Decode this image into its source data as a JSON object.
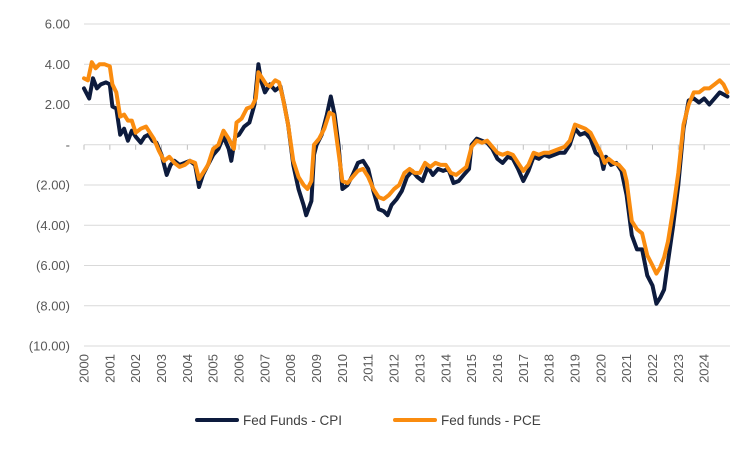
{
  "chart_data": {
    "type": "line",
    "title": "",
    "xlabel": "",
    "ylabel": "",
    "ylim": [
      -10,
      6
    ],
    "yticks": [
      6,
      4,
      2,
      0,
      -2,
      -4,
      -6,
      -8,
      -10
    ],
    "ytick_labels": [
      "6.00",
      "4.00",
      "2.00",
      "-",
      "(2.00)",
      "(4.00)",
      "(6.00)",
      "(8.00)",
      "(10.00)"
    ],
    "xlim": [
      2000,
      2025
    ],
    "xticks": [
      "2000",
      "2001",
      "2002",
      "2003",
      "2004",
      "2005",
      "2006",
      "2007",
      "2008",
      "2009",
      "2010",
      "2011",
      "2012",
      "2013",
      "2014",
      "2015",
      "2016",
      "2017",
      "2018",
      "2019",
      "2020",
      "2021",
      "2022",
      "2023",
      "2024"
    ],
    "grid": "horizontal",
    "legend_position": "bottom",
    "series": [
      {
        "name": "Fed Funds - CPI",
        "color": "#0d1b3d",
        "points": [
          [
            2000.0,
            2.8
          ],
          [
            2000.2,
            2.3
          ],
          [
            2000.35,
            3.3
          ],
          [
            2000.5,
            2.8
          ],
          [
            2000.65,
            3.0
          ],
          [
            2000.85,
            3.1
          ],
          [
            2001.0,
            3.0
          ],
          [
            2001.1,
            1.9
          ],
          [
            2001.25,
            1.8
          ],
          [
            2001.4,
            0.5
          ],
          [
            2001.55,
            0.8
          ],
          [
            2001.7,
            0.2
          ],
          [
            2001.85,
            0.7
          ],
          [
            2002.0,
            0.4
          ],
          [
            2002.2,
            0.1
          ],
          [
            2002.35,
            0.4
          ],
          [
            2002.5,
            0.5
          ],
          [
            2002.65,
            0.2
          ],
          [
            2002.8,
            0.1
          ],
          [
            2003.0,
            -0.5
          ],
          [
            2003.2,
            -1.5
          ],
          [
            2003.35,
            -1.0
          ],
          [
            2003.5,
            -0.8
          ],
          [
            2003.7,
            -1.0
          ],
          [
            2003.9,
            -0.9
          ],
          [
            2004.1,
            -0.8
          ],
          [
            2004.3,
            -1.0
          ],
          [
            2004.45,
            -2.1
          ],
          [
            2004.6,
            -1.5
          ],
          [
            2004.8,
            -1.0
          ],
          [
            2005.0,
            -0.5
          ],
          [
            2005.2,
            -0.2
          ],
          [
            2005.4,
            0.4
          ],
          [
            2005.6,
            -0.2
          ],
          [
            2005.7,
            -0.8
          ],
          [
            2005.85,
            0.4
          ],
          [
            2006.0,
            0.5
          ],
          [
            2006.2,
            0.9
          ],
          [
            2006.4,
            1.1
          ],
          [
            2006.6,
            2.0
          ],
          [
            2006.75,
            4.0
          ],
          [
            2006.85,
            3.2
          ],
          [
            2007.0,
            2.6
          ],
          [
            2007.2,
            3.0
          ],
          [
            2007.4,
            2.7
          ],
          [
            2007.6,
            2.9
          ],
          [
            2007.75,
            2.0
          ],
          [
            2007.9,
            1.0
          ],
          [
            2008.1,
            -1.0
          ],
          [
            2008.3,
            -2.2
          ],
          [
            2008.5,
            -3.0
          ],
          [
            2008.6,
            -3.5
          ],
          [
            2008.8,
            -2.8
          ],
          [
            2008.9,
            -0.5
          ],
          [
            2009.0,
            0.0
          ],
          [
            2009.2,
            0.5
          ],
          [
            2009.4,
            1.5
          ],
          [
            2009.55,
            2.4
          ],
          [
            2009.7,
            1.5
          ],
          [
            2009.85,
            0.0
          ],
          [
            2010.0,
            -2.2
          ],
          [
            2010.2,
            -2.0
          ],
          [
            2010.4,
            -1.5
          ],
          [
            2010.6,
            -0.9
          ],
          [
            2010.8,
            -0.8
          ],
          [
            2011.0,
            -1.2
          ],
          [
            2011.2,
            -2.3
          ],
          [
            2011.4,
            -3.2
          ],
          [
            2011.6,
            -3.3
          ],
          [
            2011.75,
            -3.5
          ],
          [
            2011.9,
            -3.0
          ],
          [
            2012.1,
            -2.7
          ],
          [
            2012.3,
            -2.3
          ],
          [
            2012.5,
            -1.6
          ],
          [
            2012.7,
            -1.3
          ],
          [
            2012.9,
            -1.6
          ],
          [
            2013.1,
            -1.8
          ],
          [
            2013.3,
            -1.1
          ],
          [
            2013.5,
            -1.5
          ],
          [
            2013.7,
            -1.2
          ],
          [
            2013.9,
            -1.3
          ],
          [
            2014.1,
            -1.2
          ],
          [
            2014.3,
            -1.9
          ],
          [
            2014.5,
            -1.8
          ],
          [
            2014.7,
            -1.5
          ],
          [
            2014.9,
            -1.2
          ],
          [
            2015.0,
            0.0
          ],
          [
            2015.2,
            0.3
          ],
          [
            2015.4,
            0.2
          ],
          [
            2015.6,
            0.1
          ],
          [
            2015.8,
            -0.2
          ],
          [
            2016.0,
            -0.7
          ],
          [
            2016.2,
            -0.9
          ],
          [
            2016.4,
            -0.6
          ],
          [
            2016.6,
            -0.7
          ],
          [
            2016.8,
            -1.2
          ],
          [
            2017.0,
            -1.8
          ],
          [
            2017.2,
            -1.3
          ],
          [
            2017.4,
            -0.6
          ],
          [
            2017.6,
            -0.7
          ],
          [
            2017.8,
            -0.5
          ],
          [
            2018.0,
            -0.6
          ],
          [
            2018.2,
            -0.5
          ],
          [
            2018.4,
            -0.4
          ],
          [
            2018.6,
            -0.4
          ],
          [
            2018.8,
            0.0
          ],
          [
            2019.0,
            0.8
          ],
          [
            2019.2,
            0.5
          ],
          [
            2019.4,
            0.6
          ],
          [
            2019.6,
            0.3
          ],
          [
            2019.8,
            -0.4
          ],
          [
            2020.0,
            -0.6
          ],
          [
            2020.1,
            -1.2
          ],
          [
            2020.2,
            -0.6
          ],
          [
            2020.4,
            -1.0
          ],
          [
            2020.6,
            -0.9
          ],
          [
            2020.8,
            -1.3
          ],
          [
            2021.0,
            -2.5
          ],
          [
            2021.2,
            -4.5
          ],
          [
            2021.4,
            -5.2
          ],
          [
            2021.6,
            -5.2
          ],
          [
            2021.8,
            -6.5
          ],
          [
            2022.0,
            -7.0
          ],
          [
            2022.15,
            -7.9
          ],
          [
            2022.3,
            -7.6
          ],
          [
            2022.45,
            -7.2
          ],
          [
            2022.6,
            -5.8
          ],
          [
            2022.8,
            -4.0
          ],
          [
            2023.0,
            -2.0
          ],
          [
            2023.2,
            0.8
          ],
          [
            2023.4,
            2.2
          ],
          [
            2023.6,
            2.3
          ],
          [
            2023.8,
            2.1
          ],
          [
            2024.0,
            2.3
          ],
          [
            2024.2,
            2.0
          ],
          [
            2024.4,
            2.3
          ],
          [
            2024.6,
            2.6
          ],
          [
            2024.75,
            2.5
          ],
          [
            2024.9,
            2.4
          ]
        ]
      },
      {
        "name": "Fed funds - PCE",
        "color": "#fa8c0f",
        "points": [
          [
            2000.0,
            3.3
          ],
          [
            2000.15,
            3.2
          ],
          [
            2000.3,
            4.1
          ],
          [
            2000.45,
            3.8
          ],
          [
            2000.6,
            4.0
          ],
          [
            2000.8,
            4.0
          ],
          [
            2001.0,
            3.9
          ],
          [
            2001.1,
            3.0
          ],
          [
            2001.25,
            2.6
          ],
          [
            2001.4,
            1.4
          ],
          [
            2001.55,
            1.5
          ],
          [
            2001.7,
            1.2
          ],
          [
            2001.85,
            1.2
          ],
          [
            2002.0,
            0.6
          ],
          [
            2002.2,
            0.8
          ],
          [
            2002.4,
            0.9
          ],
          [
            2002.55,
            0.6
          ],
          [
            2002.7,
            0.3
          ],
          [
            2002.9,
            -0.3
          ],
          [
            2003.1,
            -0.8
          ],
          [
            2003.3,
            -0.6
          ],
          [
            2003.5,
            -0.9
          ],
          [
            2003.7,
            -1.1
          ],
          [
            2003.9,
            -1.0
          ],
          [
            2004.1,
            -0.8
          ],
          [
            2004.3,
            -0.9
          ],
          [
            2004.45,
            -1.7
          ],
          [
            2004.6,
            -1.4
          ],
          [
            2004.8,
            -1.0
          ],
          [
            2005.0,
            -0.2
          ],
          [
            2005.2,
            0.0
          ],
          [
            2005.4,
            0.7
          ],
          [
            2005.6,
            0.3
          ],
          [
            2005.8,
            -0.2
          ],
          [
            2005.9,
            1.1
          ],
          [
            2006.1,
            1.3
          ],
          [
            2006.3,
            1.8
          ],
          [
            2006.5,
            1.9
          ],
          [
            2006.65,
            2.3
          ],
          [
            2006.75,
            3.6
          ],
          [
            2006.9,
            3.3
          ],
          [
            2007.05,
            3.0
          ],
          [
            2007.2,
            2.9
          ],
          [
            2007.4,
            3.2
          ],
          [
            2007.55,
            3.1
          ],
          [
            2007.7,
            2.3
          ],
          [
            2007.9,
            1.0
          ],
          [
            2008.1,
            -0.8
          ],
          [
            2008.3,
            -1.6
          ],
          [
            2008.5,
            -2.0
          ],
          [
            2008.65,
            -2.2
          ],
          [
            2008.8,
            -1.8
          ],
          [
            2008.9,
            0.0
          ],
          [
            2009.1,
            0.3
          ],
          [
            2009.3,
            0.8
          ],
          [
            2009.5,
            1.6
          ],
          [
            2009.65,
            1.5
          ],
          [
            2009.8,
            0.1
          ],
          [
            2010.0,
            -1.8
          ],
          [
            2010.2,
            -1.9
          ],
          [
            2010.4,
            -1.6
          ],
          [
            2010.6,
            -1.3
          ],
          [
            2010.8,
            -1.2
          ],
          [
            2011.0,
            -1.6
          ],
          [
            2011.2,
            -2.2
          ],
          [
            2011.4,
            -2.6
          ],
          [
            2011.6,
            -2.7
          ],
          [
            2011.8,
            -2.5
          ],
          [
            2012.0,
            -2.2
          ],
          [
            2012.2,
            -2.0
          ],
          [
            2012.4,
            -1.4
          ],
          [
            2012.6,
            -1.2
          ],
          [
            2012.8,
            -1.4
          ],
          [
            2013.0,
            -1.4
          ],
          [
            2013.2,
            -0.9
          ],
          [
            2013.4,
            -1.1
          ],
          [
            2013.6,
            -0.9
          ],
          [
            2013.8,
            -1.0
          ],
          [
            2014.0,
            -1.0
          ],
          [
            2014.2,
            -1.4
          ],
          [
            2014.4,
            -1.5
          ],
          [
            2014.6,
            -1.3
          ],
          [
            2014.8,
            -1.1
          ],
          [
            2015.0,
            -0.1
          ],
          [
            2015.2,
            0.2
          ],
          [
            2015.4,
            0.1
          ],
          [
            2015.6,
            0.2
          ],
          [
            2015.8,
            -0.1
          ],
          [
            2016.0,
            -0.4
          ],
          [
            2016.2,
            -0.5
          ],
          [
            2016.4,
            -0.4
          ],
          [
            2016.6,
            -0.5
          ],
          [
            2016.8,
            -0.9
          ],
          [
            2017.0,
            -1.3
          ],
          [
            2017.2,
            -1.0
          ],
          [
            2017.4,
            -0.4
          ],
          [
            2017.6,
            -0.5
          ],
          [
            2017.8,
            -0.4
          ],
          [
            2018.0,
            -0.4
          ],
          [
            2018.2,
            -0.3
          ],
          [
            2018.4,
            -0.2
          ],
          [
            2018.6,
            -0.1
          ],
          [
            2018.8,
            0.2
          ],
          [
            2019.0,
            1.0
          ],
          [
            2019.2,
            0.9
          ],
          [
            2019.4,
            0.8
          ],
          [
            2019.6,
            0.6
          ],
          [
            2019.8,
            0.1
          ],
          [
            2020.0,
            -0.4
          ],
          [
            2020.15,
            -0.9
          ],
          [
            2020.3,
            -0.7
          ],
          [
            2020.5,
            -0.9
          ],
          [
            2020.7,
            -1.0
          ],
          [
            2020.9,
            -1.3
          ],
          [
            2021.0,
            -1.8
          ],
          [
            2021.2,
            -3.8
          ],
          [
            2021.4,
            -4.2
          ],
          [
            2021.6,
            -4.4
          ],
          [
            2021.8,
            -5.5
          ],
          [
            2022.0,
            -6.0
          ],
          [
            2022.15,
            -6.4
          ],
          [
            2022.3,
            -6.1
          ],
          [
            2022.45,
            -5.6
          ],
          [
            2022.6,
            -4.8
          ],
          [
            2022.8,
            -3.2
          ],
          [
            2023.0,
            -1.4
          ],
          [
            2023.2,
            1.0
          ],
          [
            2023.4,
            2.0
          ],
          [
            2023.6,
            2.6
          ],
          [
            2023.8,
            2.6
          ],
          [
            2024.0,
            2.8
          ],
          [
            2024.2,
            2.8
          ],
          [
            2024.4,
            3.0
          ],
          [
            2024.6,
            3.2
          ],
          [
            2024.75,
            3.0
          ],
          [
            2024.9,
            2.6
          ]
        ]
      }
    ]
  }
}
